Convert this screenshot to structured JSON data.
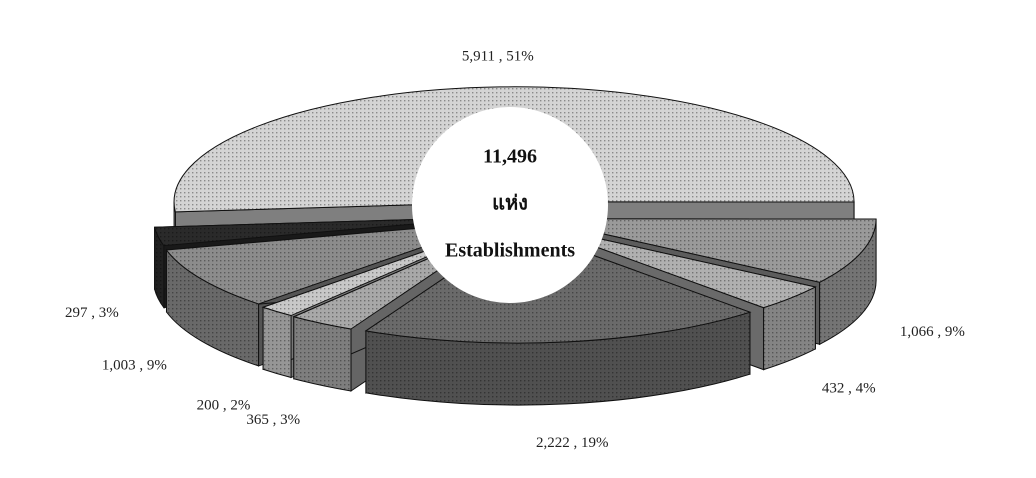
{
  "chart_data": {
    "type": "pie",
    "center_text": [
      "11,496",
      "แห่ง",
      "Establishments"
    ],
    "categories": [
      null,
      null,
      null,
      null,
      null,
      null,
      null,
      null
    ],
    "values": [
      5911,
      1066,
      432,
      2222,
      365,
      200,
      1003,
      297
    ],
    "value_labels": [
      "5,911 , 51%",
      "1,066 , 9%",
      "432 , 4%",
      "2,222 , 19%",
      "365 , 3%",
      "200 , 2%",
      "1,003 , 9%",
      "297 , 3%"
    ],
    "colors": [
      "#d4d4d4",
      "#9a9a9a",
      "#b0b0b0",
      "#6a6a6a",
      "#a8a8a8",
      "#c8c8c8",
      "#8c8c8c",
      "#2a2a2a"
    ]
  }
}
